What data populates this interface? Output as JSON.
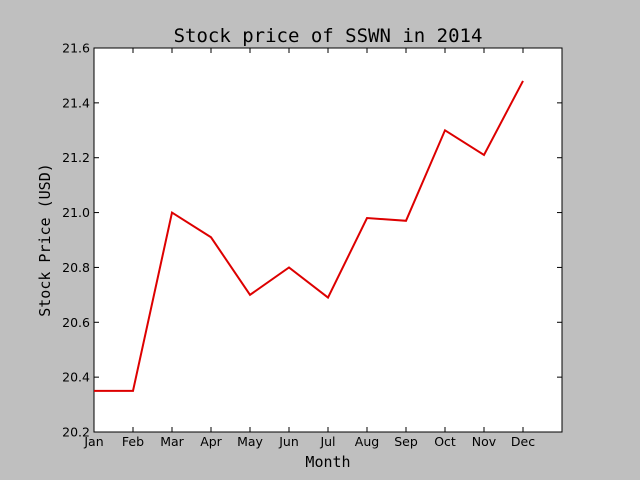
{
  "chart_data": {
    "type": "line",
    "title": "Stock price of SSWN in 2014",
    "xlabel": "Month",
    "ylabel": "Stock Price (USD)",
    "categories": [
      "Jan",
      "Feb",
      "Mar",
      "Apr",
      "May",
      "Jun",
      "Jul",
      "Aug",
      "Sep",
      "Oct",
      "Nov",
      "Dec"
    ],
    "series": [
      {
        "values": [
          20.35,
          20.35,
          21.0,
          20.91,
          20.7,
          20.8,
          20.69,
          20.98,
          20.97,
          21.3,
          21.21,
          21.48
        ],
        "color": "#dd0000"
      }
    ],
    "ylim": [
      20.2,
      21.6
    ],
    "xlim": [
      0,
      12
    ],
    "yticks": [
      "20.2",
      "20.4",
      "20.6",
      "20.8",
      "21.0",
      "21.2",
      "21.4",
      "21.6"
    ],
    "grid": false,
    "legend": "none"
  }
}
